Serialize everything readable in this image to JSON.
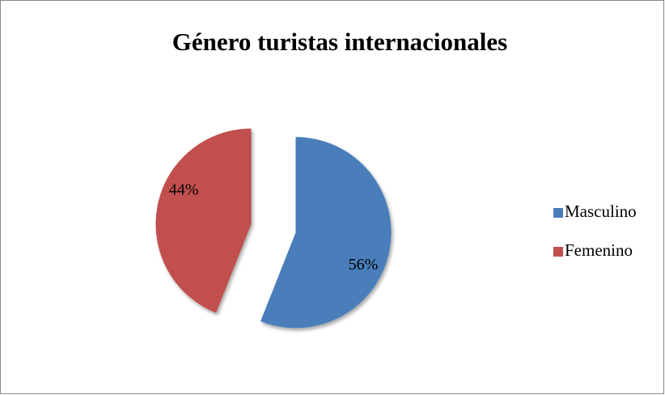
{
  "chart_data": {
    "type": "pie",
    "title": "Género turistas internacionales",
    "categories": [
      "Masculino",
      "Femenino"
    ],
    "values": [
      56,
      44
    ],
    "value_labels": [
      "56%",
      "44%"
    ],
    "colors": [
      "#4a7ebb",
      "#c0504d"
    ],
    "legend": "right"
  }
}
